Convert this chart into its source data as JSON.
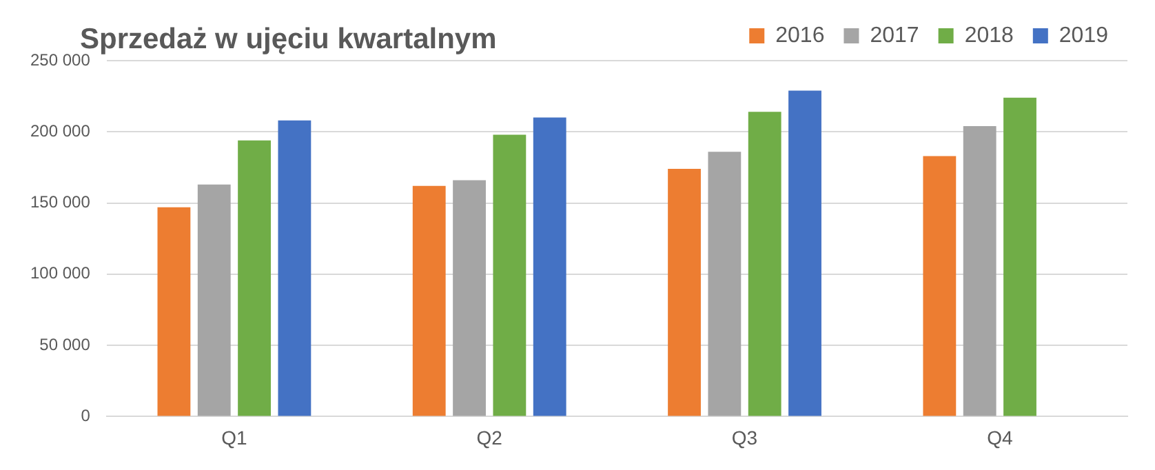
{
  "chart_data": {
    "type": "bar",
    "title": "Sprzedaż w ujęciu kwartalnym",
    "categories": [
      "Q1",
      "Q2",
      "Q3",
      "Q4"
    ],
    "series": [
      {
        "name": "2016",
        "color": "#ed7d31",
        "values": [
          147000,
          162000,
          174000,
          183000
        ]
      },
      {
        "name": "2017",
        "color": "#a5a5a5",
        "values": [
          163000,
          166000,
          186000,
          204000
        ]
      },
      {
        "name": "2018",
        "color": "#70ad47",
        "values": [
          194000,
          198000,
          214000,
          224000
        ]
      },
      {
        "name": "2019",
        "color": "#4472c4",
        "values": [
          208000,
          210000,
          229000,
          null
        ]
      }
    ],
    "ylim": [
      0,
      250000
    ],
    "yticks": [
      {
        "value": 0,
        "label": "0"
      },
      {
        "value": 50000,
        "label": "50 000"
      },
      {
        "value": 100000,
        "label": "100 000"
      },
      {
        "value": 150000,
        "label": "150 000"
      },
      {
        "value": 200000,
        "label": "200 000"
      },
      {
        "value": 250000,
        "label": "250 000"
      }
    ],
    "grid": "y",
    "legend": "top right"
  }
}
